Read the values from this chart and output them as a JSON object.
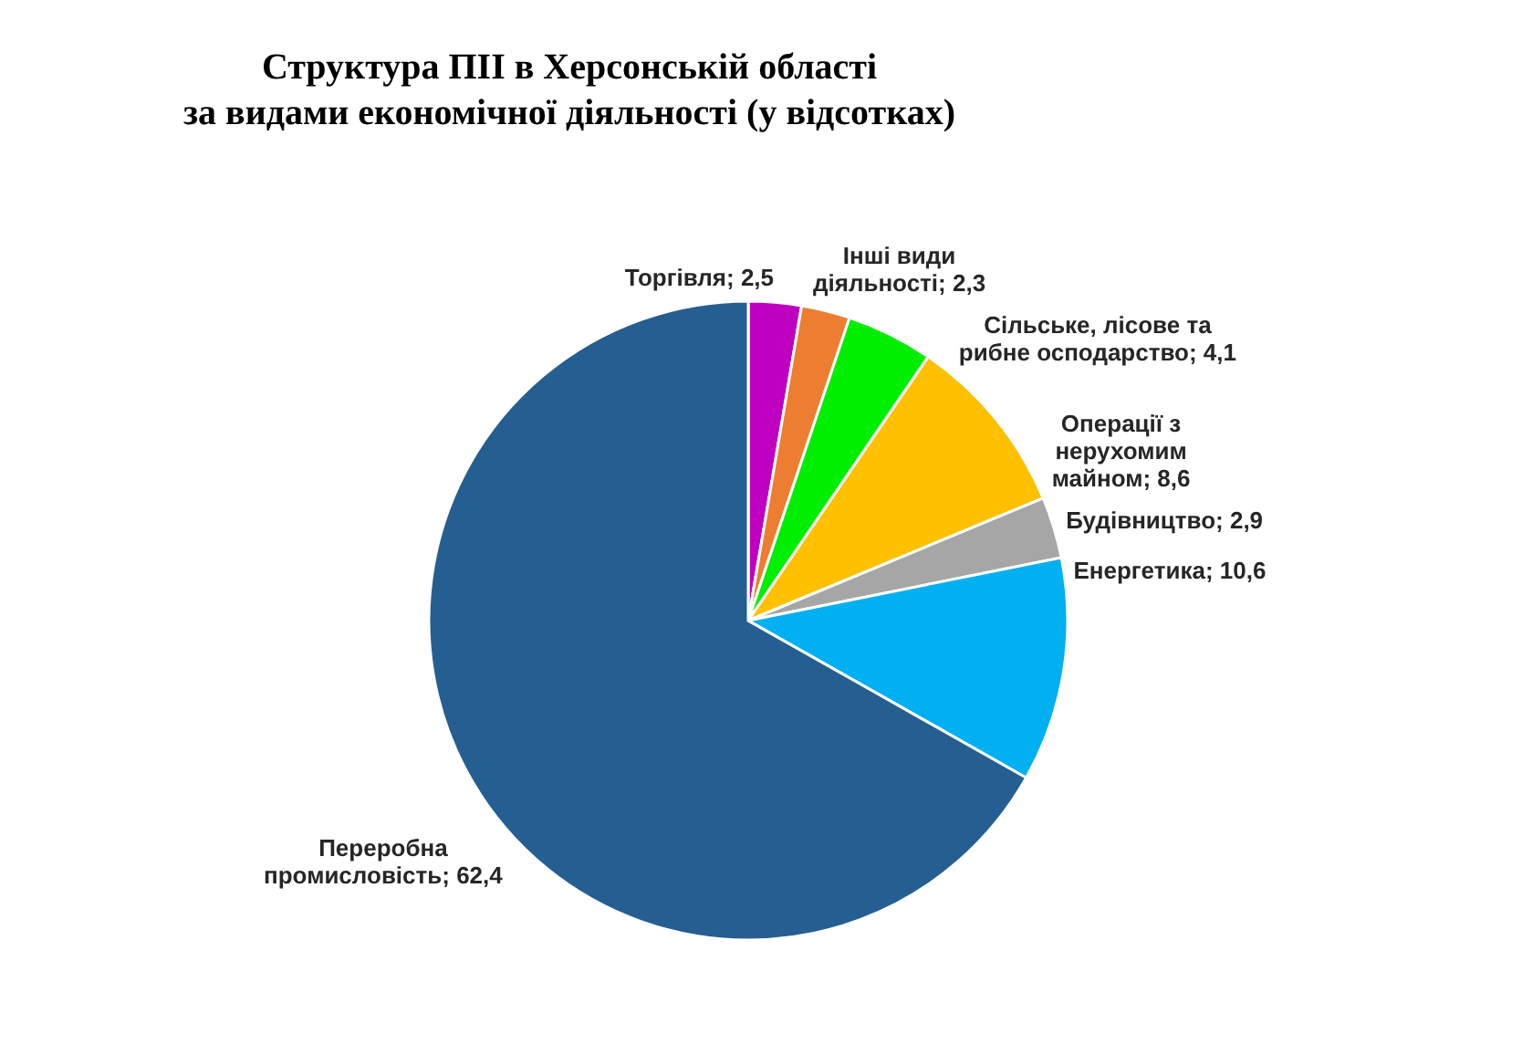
{
  "chart_data": {
    "type": "pie",
    "title": "Структура ПІІ в Херсонській області\nза видами економічної діяльності (у відсотках)",
    "categories": [
      "Торгівля",
      "Інші види діяльності",
      "Сільське, лісове та рибне осподарство",
      "Операції з нерухомим майном",
      "Будівництво",
      "Енергетика",
      "Переробна промисловість"
    ],
    "values": [
      2.5,
      2.3,
      4.1,
      8.6,
      2.9,
      10.6,
      62.4
    ],
    "value_labels": [
      "2,5",
      "2,3",
      "4,1",
      "8,6",
      "2,9",
      "10,6",
      "62,4"
    ],
    "colors": [
      "#c000c0",
      "#ed7d31",
      "#00ee00",
      "#ffc000",
      "#a6a6a6",
      "#00b0f0",
      "#255e91"
    ]
  }
}
